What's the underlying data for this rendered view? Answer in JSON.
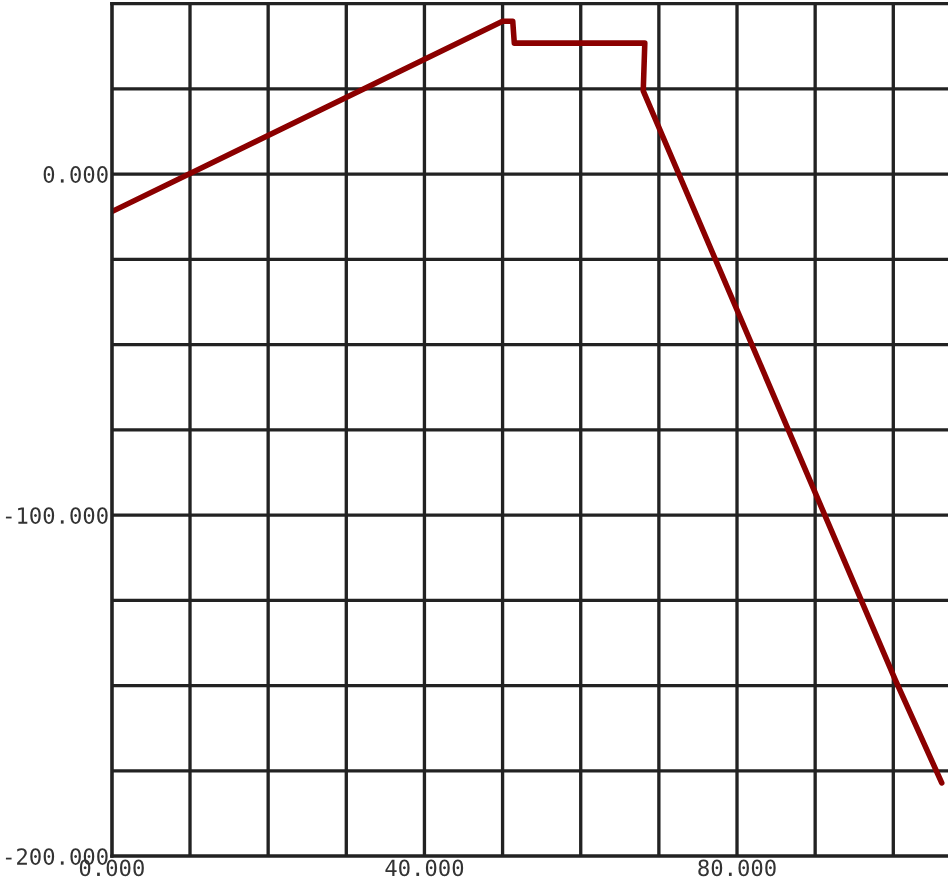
{
  "chart_data": {
    "type": "line",
    "x": [
      0,
      50,
      51.3,
      51.5,
      68.2,
      68,
      100.2,
      106.2
    ],
    "series": [
      {
        "color": "#8b0000",
        "values": [
          -11,
          44.8,
          44.8,
          38.4,
          38.4,
          24.4,
          -148,
          -178.5
        ]
      }
    ],
    "xlim": [
      0,
      107
    ],
    "ylim": [
      -200,
      50
    ],
    "xticks": [
      {
        "value": 0,
        "label": "0.000"
      },
      {
        "value": 10,
        "label": null
      },
      {
        "value": 20,
        "label": null
      },
      {
        "value": 30,
        "label": null
      },
      {
        "value": 40,
        "label": "40.000"
      },
      {
        "value": 50,
        "label": null
      },
      {
        "value": 60,
        "label": null
      },
      {
        "value": 70,
        "label": null
      },
      {
        "value": 80,
        "label": "80.000"
      },
      {
        "value": 90,
        "label": null
      },
      {
        "value": 100,
        "label": null
      }
    ],
    "yticks": [
      {
        "value": -200,
        "label": "-200.000"
      },
      {
        "value": -175,
        "label": null
      },
      {
        "value": -150,
        "label": null
      },
      {
        "value": -125,
        "label": null
      },
      {
        "value": -100,
        "label": "-100.000"
      },
      {
        "value": -75,
        "label": null
      },
      {
        "value": -50,
        "label": null
      },
      {
        "value": -25,
        "label": null
      },
      {
        "value": 0,
        "label": "0.000"
      },
      {
        "value": 25,
        "label": null
      }
    ],
    "grid": true
  }
}
